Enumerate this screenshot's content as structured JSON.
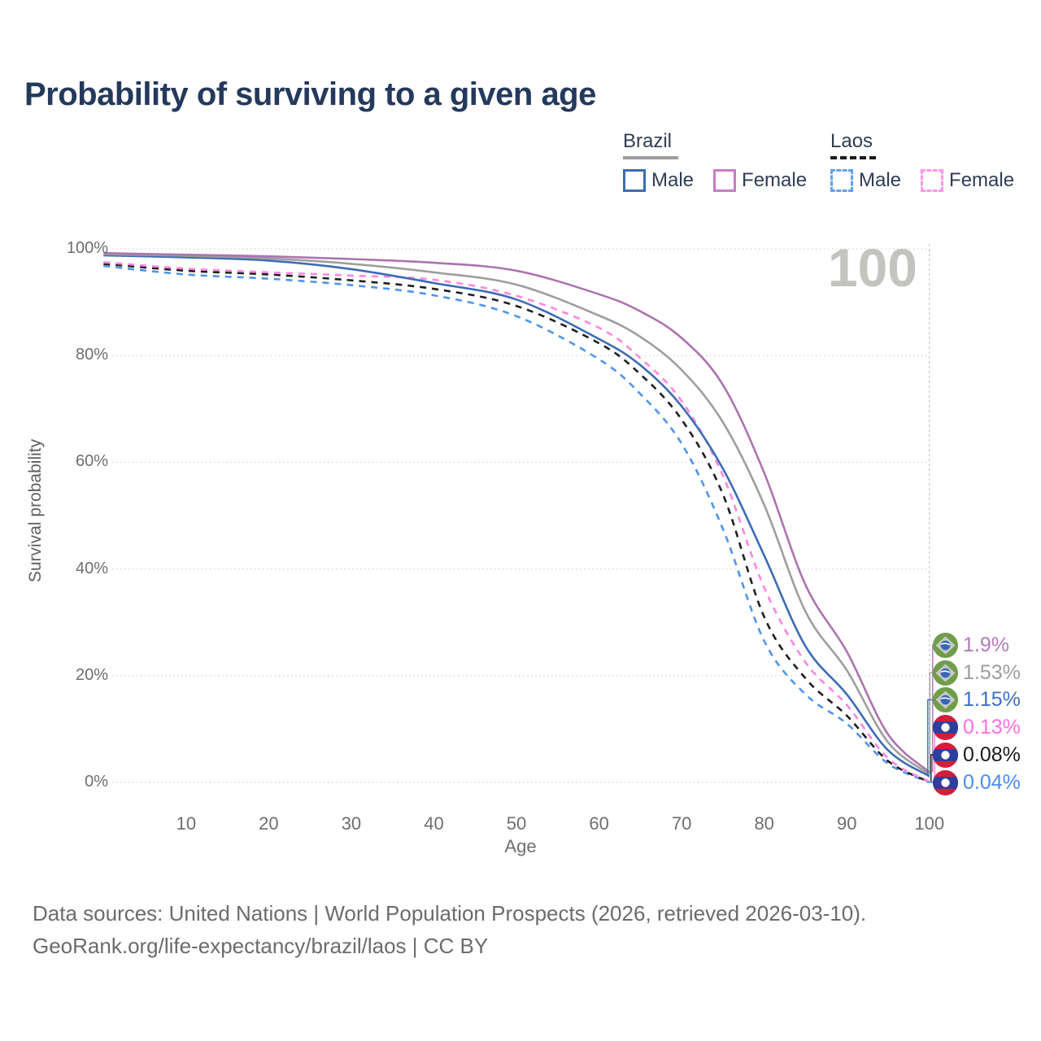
{
  "title": "Probability of surviving to a given age",
  "watermark": "100",
  "legend": {
    "groups": [
      {
        "country": "Brazil",
        "underline_style": "solid",
        "underline_color": "#9e9e9e",
        "items": [
          {
            "label": "Male",
            "color": "#3c6cb4",
            "dashed": false
          },
          {
            "label": "Female",
            "color": "#c77cc7",
            "dashed": false
          }
        ]
      },
      {
        "country": "Laos",
        "underline_style": "dashed",
        "underline_color": "#1a1a1a",
        "items": [
          {
            "label": "Male",
            "color": "#63a0ee",
            "dashed": true
          },
          {
            "label": "Female",
            "color": "#ff96e6",
            "dashed": true
          }
        ]
      }
    ]
  },
  "chart_data": {
    "type": "line",
    "title": "Probability of surviving to a given age",
    "xlabel": "Age",
    "ylabel": "Survival probability",
    "x_ticks": [
      10,
      20,
      30,
      40,
      50,
      60,
      70,
      80,
      90,
      100
    ],
    "y_ticks_percent": [
      0,
      20,
      40,
      60,
      80,
      100
    ],
    "xlim": [
      0,
      100
    ],
    "ylim": [
      0,
      100
    ],
    "grid": "horizontal-dotted",
    "legend_position": "top-right",
    "ages": [
      0,
      10,
      20,
      30,
      40,
      50,
      60,
      65,
      70,
      75,
      80,
      85,
      90,
      95,
      100
    ],
    "series": [
      {
        "name": "Brazil Female",
        "country": "Brazil",
        "sex": "Female",
        "color": "#ab74ae",
        "dashed": false,
        "end_label": "1.9%",
        "end_label_color": "#b07cb8",
        "flag": "brazil",
        "values": [
          99.2,
          98.9,
          98.6,
          98.1,
          97.4,
          95.9,
          91.5,
          88.3,
          83.3,
          74.5,
          58.0,
          37.0,
          24.5,
          9.0,
          1.9
        ]
      },
      {
        "name": "Brazil Overall",
        "country": "Brazil",
        "sex": "All",
        "color": "#9e9e9e",
        "dashed": false,
        "end_label": "1.53%",
        "end_label_color": "#9e9e9e",
        "flag": "brazil",
        "values": [
          99.0,
          98.7,
          98.2,
          97.2,
          95.6,
          93.3,
          87.5,
          83.5,
          77.3,
          67.5,
          52.0,
          32.0,
          21.0,
          7.5,
          1.53
        ]
      },
      {
        "name": "Brazil Male",
        "country": "Brazil",
        "sex": "Male",
        "color": "#3c6cb4",
        "dashed": false,
        "end_label": "1.15%",
        "end_label_color": "#3d6fc0",
        "flag": "brazil",
        "values": [
          98.8,
          98.4,
          97.8,
          96.2,
          93.6,
          90.5,
          83.1,
          78.2,
          70.5,
          58.8,
          42.5,
          25.5,
          16.5,
          6.0,
          1.15
        ]
      },
      {
        "name": "Laos Female",
        "country": "Laos",
        "sex": "Female",
        "color": "#ff85e2",
        "dashed": true,
        "end_label": "0.13%",
        "end_label_color": "#ff6ee0",
        "flag": "laos",
        "values": [
          97.5,
          96.3,
          95.6,
          95.0,
          94.2,
          91.2,
          85.2,
          79.5,
          71.5,
          57.5,
          36.5,
          22.5,
          14.5,
          4.5,
          0.13
        ]
      },
      {
        "name": "Laos Overall",
        "country": "Laos",
        "sex": "All",
        "color": "#1f1f1f",
        "dashed": true,
        "end_label": "0.08%",
        "end_label_color": "#1a1a1a",
        "flag": "laos",
        "values": [
          97.2,
          95.9,
          95.2,
          94.1,
          92.5,
          89.3,
          82.3,
          76.5,
          68.0,
          54.0,
          31.0,
          19.5,
          12.5,
          4.0,
          0.08
        ]
      },
      {
        "name": "Laos Male",
        "country": "Laos",
        "sex": "Male",
        "color": "#4f94ec",
        "dashed": true,
        "end_label": "0.04%",
        "end_label_color": "#4b8bf0",
        "flag": "laos",
        "values": [
          96.8,
          95.2,
          94.4,
          93.2,
          91.3,
          87.4,
          79.3,
          72.8,
          63.5,
          47.5,
          26.5,
          16.5,
          11.0,
          3.5,
          0.04
        ]
      }
    ]
  },
  "footer": {
    "line1": "Data sources: United Nations | World Population Prospects (2026, retrieved 2026-03-10).",
    "line2": "GeoRank.org/life-expectancy/brazil/laos | CC BY"
  }
}
